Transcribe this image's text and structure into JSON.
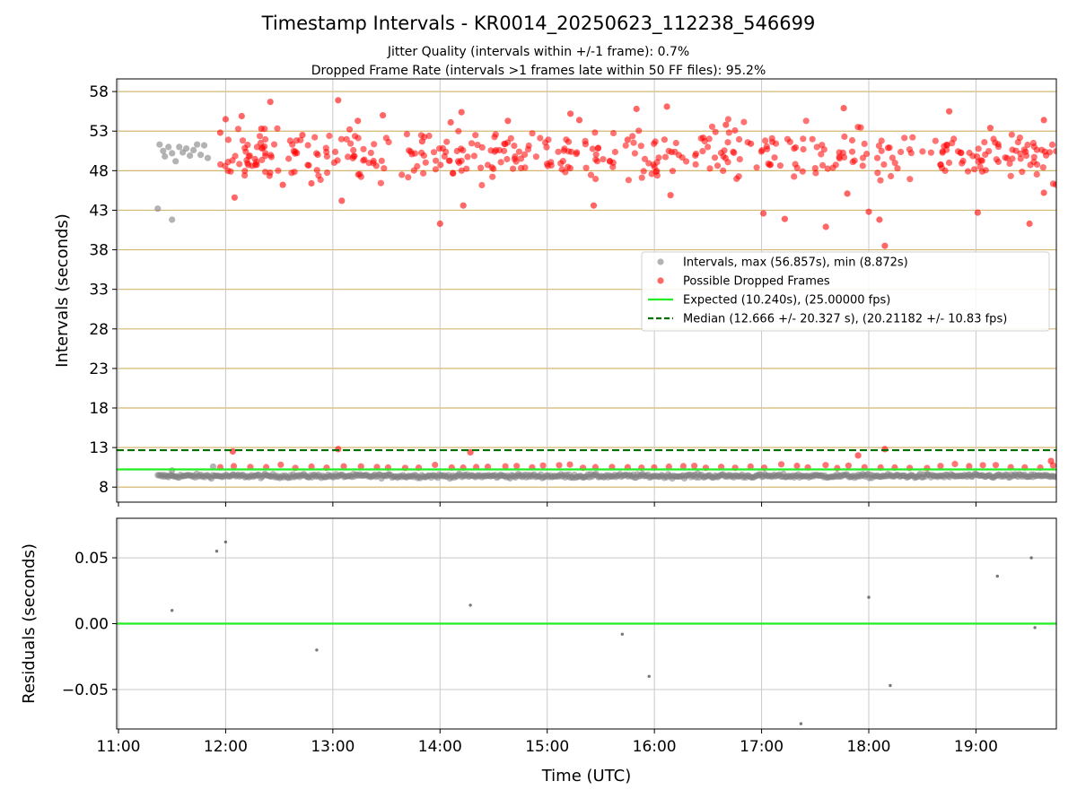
{
  "title": "Timestamp Intervals - KR0014_20250623_112238_546699",
  "subtitle1": "Jitter Quality (intervals within +/-1 frame): 0.7%",
  "subtitle2": "Dropped Frame Rate (intervals >1 frames late within 50 FF files): 95.2%",
  "colors": {
    "intervals": "#808080",
    "dropped": "#ff0000",
    "expected": "#22ee22",
    "median": "#007000",
    "hgrid": "#d4b870",
    "vgrid": "#c8c8c8"
  },
  "chart_data": [
    {
      "type": "scatter",
      "ylabel": "Intervals (seconds)",
      "xlabel": "",
      "xlim": [
        "10:59",
        "19:45"
      ],
      "ylim": [
        6.1,
        59.6
      ],
      "xticks": [
        "11:00",
        "12:00",
        "13:00",
        "14:00",
        "15:00",
        "16:00",
        "17:00",
        "18:00",
        "19:00"
      ],
      "yticks": [
        8,
        13,
        18,
        23,
        28,
        33,
        38,
        43,
        48,
        53,
        58
      ],
      "grid": "horizontal lines at y ticks, vertical lines at x ticks",
      "legend_position": "center-right",
      "lines": [
        {
          "name": "Expected (10.240s), (25.00000 fps)",
          "y": 10.24,
          "style": "solid"
        },
        {
          "name": "Median (12.666 +/- 20.327 s), (20.21182 +/- 10.83 fps)",
          "y": 12.666,
          "style": "dashed"
        }
      ],
      "series": [
        {
          "name": "Intervals, max (56.857s), min (8.872s)",
          "style": "grey markers",
          "points": [
            {
              "x": "11:22",
              "y": 43.2
            },
            {
              "x": "11:30",
              "y": 41.8
            },
            {
              "x": "11:23",
              "y": 51.3
            },
            {
              "x": "11:25",
              "y": 50.5
            },
            {
              "x": "11:26",
              "y": 49.8
            },
            {
              "x": "11:28",
              "y": 51.0
            },
            {
              "x": "11:30",
              "y": 50.2
            },
            {
              "x": "11:32",
              "y": 49.2
            },
            {
              "x": "11:34",
              "y": 51.0
            },
            {
              "x": "11:36",
              "y": 50.3
            },
            {
              "x": "11:38",
              "y": 50.8
            },
            {
              "x": "11:40",
              "y": 49.9
            },
            {
              "x": "11:42",
              "y": 50.6
            },
            {
              "x": "11:44",
              "y": 51.3
            },
            {
              "x": "11:46",
              "y": 50.0
            },
            {
              "x": "11:48",
              "y": 51.2
            },
            {
              "x": "11:50",
              "y": 49.6
            },
            {
              "x": "11:30",
              "y": 10.1
            },
            {
              "x": "11:53",
              "y": 10.6
            }
          ],
          "band": {
            "x_from": "11:22",
            "x_to": "19:45",
            "y_center": 9.4,
            "y_spread": 0.35
          }
        },
        {
          "name": "Possible Dropped Frames",
          "style": "red markers",
          "points": [
            {
              "x": "11:57",
              "y": 52.8
            },
            {
              "x": "12:00",
              "y": 54.5
            },
            {
              "x": "12:05",
              "y": 44.6
            },
            {
              "x": "12:09",
              "y": 54.9
            },
            {
              "x": "12:20",
              "y": 53.3
            },
            {
              "x": "12:25",
              "y": 56.7
            },
            {
              "x": "12:32",
              "y": 46.2
            },
            {
              "x": "12:43",
              "y": 52.5
            },
            {
              "x": "12:48",
              "y": 46.4
            },
            {
              "x": "13:03",
              "y": 56.9
            },
            {
              "x": "13:05",
              "y": 44.2
            },
            {
              "x": "13:14",
              "y": 54.3
            },
            {
              "x": "13:28",
              "y": 55.0
            },
            {
              "x": "13:50",
              "y": 51.7
            },
            {
              "x": "14:00",
              "y": 41.3
            },
            {
              "x": "14:06",
              "y": 54.1
            },
            {
              "x": "14:12",
              "y": 55.4
            },
            {
              "x": "14:13",
              "y": 43.6
            },
            {
              "x": "14:38",
              "y": 54.3
            },
            {
              "x": "15:13",
              "y": 55.2
            },
            {
              "x": "15:18",
              "y": 54.4
            },
            {
              "x": "15:26",
              "y": 43.6
            },
            {
              "x": "15:45",
              "y": 51.9
            },
            {
              "x": "15:50",
              "y": 55.8
            },
            {
              "x": "16:07",
              "y": 56.1
            },
            {
              "x": "16:09",
              "y": 44.9
            },
            {
              "x": "16:40",
              "y": 53.8
            },
            {
              "x": "16:54",
              "y": 51.4
            },
            {
              "x": "17:01",
              "y": 42.6
            },
            {
              "x": "17:13",
              "y": 41.9
            },
            {
              "x": "17:36",
              "y": 40.9
            },
            {
              "x": "17:46",
              "y": 55.9
            },
            {
              "x": "17:48",
              "y": 45.1
            },
            {
              "x": "18:00",
              "y": 42.8
            },
            {
              "x": "18:06",
              "y": 41.8
            },
            {
              "x": "18:09",
              "y": 38.5
            },
            {
              "x": "18:45",
              "y": 55.5
            },
            {
              "x": "19:01",
              "y": 42.7
            },
            {
              "x": "19:08",
              "y": 53.4
            },
            {
              "x": "19:30",
              "y": 41.3
            },
            {
              "x": "19:38",
              "y": 54.4
            },
            {
              "x": "19:38",
              "y": 45.2
            },
            {
              "x": "12:04",
              "y": 12.5
            },
            {
              "x": "13:03",
              "y": 12.8
            },
            {
              "x": "14:17",
              "y": 12.4
            },
            {
              "x": "17:54",
              "y": 12.0
            },
            {
              "x": "18:09",
              "y": 12.8
            },
            {
              "x": "19:42",
              "y": 11.3
            }
          ],
          "band": {
            "x_from": "11:55",
            "x_to": "19:45",
            "y_center": 50.0,
            "y_spread": 2.2,
            "count": 430
          }
        }
      ]
    },
    {
      "type": "scatter",
      "ylabel": "Residuals (seconds)",
      "xlabel": "Time (UTC)",
      "xlim": [
        "10:59",
        "19:45"
      ],
      "ylim": [
        -0.08,
        0.08
      ],
      "xticks": [
        "11:00",
        "12:00",
        "13:00",
        "14:00",
        "15:00",
        "16:00",
        "17:00",
        "18:00",
        "19:00"
      ],
      "yticks": [
        "−0.05",
        "0.00",
        "0.05"
      ],
      "ytick_values": [
        -0.05,
        0.0,
        0.05
      ],
      "grid": true,
      "lines": [
        {
          "name": "zero",
          "y": 0.0,
          "style": "solid"
        }
      ],
      "points": [
        {
          "x": "11:30",
          "y": 0.01
        },
        {
          "x": "11:55",
          "y": 0.055
        },
        {
          "x": "12:00",
          "y": 0.062
        },
        {
          "x": "12:51",
          "y": -0.02
        },
        {
          "x": "14:17",
          "y": 0.014
        },
        {
          "x": "15:42",
          "y": -0.008
        },
        {
          "x": "15:57",
          "y": -0.04
        },
        {
          "x": "17:22",
          "y": -0.076
        },
        {
          "x": "18:00",
          "y": 0.02
        },
        {
          "x": "18:12",
          "y": -0.047
        },
        {
          "x": "19:12",
          "y": 0.036
        },
        {
          "x": "19:31",
          "y": 0.05
        },
        {
          "x": "19:33",
          "y": -0.003
        }
      ]
    }
  ]
}
